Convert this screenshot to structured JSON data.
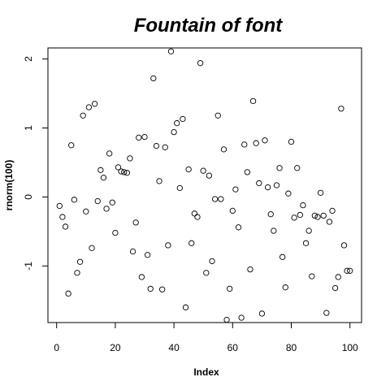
{
  "chart_data": {
    "type": "scatter",
    "title": "Fountain of font",
    "xlabel": "Index",
    "ylabel": "rnorm(100)",
    "xlim": [
      -2.96,
      103.96
    ],
    "ylim": [
      -1.82,
      2.16
    ],
    "xticks": [
      0,
      20,
      40,
      60,
      80,
      100
    ],
    "xtick_labels": [
      "0",
      "20",
      "40",
      "60",
      "80",
      "100"
    ],
    "yticks": [
      -1,
      0,
      1,
      2
    ],
    "ytick_labels": [
      "-1",
      "0",
      "1",
      "2"
    ],
    "grid": false,
    "legend": "none",
    "marker": "open-circle",
    "series": [
      {
        "x": [
          1,
          2,
          3,
          4,
          5,
          6,
          7,
          8,
          9,
          10,
          11,
          12,
          13,
          14,
          15,
          16,
          17,
          18,
          19,
          20,
          21,
          22,
          23,
          24,
          25,
          26,
          27,
          28,
          29,
          30,
          31,
          32,
          33,
          34,
          35,
          36,
          37,
          38,
          39,
          40,
          41,
          42,
          43,
          44,
          45,
          46,
          47,
          48,
          49,
          50,
          51,
          52,
          53,
          54,
          55,
          56,
          57,
          58,
          59,
          60,
          61,
          62,
          63,
          64,
          65,
          66,
          67,
          68,
          69,
          70,
          71,
          72,
          73,
          74,
          75,
          76,
          77,
          78,
          79,
          80,
          81,
          82,
          83,
          84,
          85,
          86,
          87,
          88,
          89,
          90,
          91,
          92,
          93,
          94,
          95,
          96,
          97,
          98,
          99,
          100
        ],
        "y": [
          -0.13,
          -0.29,
          -0.43,
          -1.4,
          0.75,
          -0.04,
          -1.1,
          -0.94,
          1.18,
          -0.21,
          1.3,
          -0.74,
          1.35,
          -0.06,
          0.39,
          0.28,
          -0.17,
          0.63,
          -0.08,
          -0.52,
          0.43,
          0.37,
          0.36,
          0.35,
          0.56,
          -0.79,
          -0.37,
          0.86,
          -1.16,
          0.87,
          -0.84,
          -1.33,
          1.72,
          0.74,
          0.23,
          -1.34,
          0.72,
          -0.7,
          2.11,
          0.94,
          1.07,
          0.13,
          1.13,
          -1.6,
          0.4,
          -0.67,
          -0.24,
          -0.29,
          1.94,
          0.38,
          -1.1,
          0.31,
          -0.93,
          -0.03,
          1.18,
          -0.03,
          0.69,
          -1.78,
          -1.33,
          -0.2,
          0.11,
          -0.44,
          -1.75,
          0.76,
          0.36,
          -1.05,
          1.39,
          0.78,
          0.2,
          -1.69,
          0.82,
          0.14,
          -0.25,
          -0.49,
          0.17,
          0.42,
          -0.87,
          -1.31,
          0.05,
          0.8,
          -0.3,
          0.42,
          -0.26,
          -0.12,
          -0.67,
          -0.49,
          -1.15,
          -0.27,
          -0.29,
          0.06,
          -0.27,
          -1.68,
          -0.36,
          -0.2,
          -1.32,
          -1.16,
          1.28,
          -0.7,
          -1.07,
          -1.07
        ]
      }
    ]
  }
}
